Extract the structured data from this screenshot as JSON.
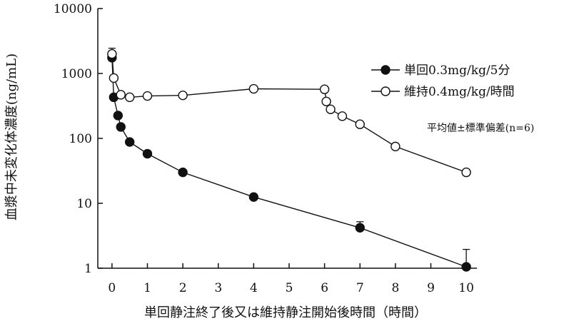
{
  "chart_data": {
    "type": "line",
    "xlabel": "単回静注終了後又は維持静注開始後時間（時間）",
    "ylabel": "血漿中未変化体濃度(ng/mL)",
    "y_scale": "log",
    "ylim": [
      1,
      10000
    ],
    "xlim": [
      -0.4,
      10.3
    ],
    "x_ticks": [
      0,
      1,
      2,
      3,
      4,
      5,
      6,
      7,
      8,
      9,
      10
    ],
    "x_tick_labels": [
      "0",
      "1",
      "2",
      "3",
      "4",
      "5",
      "6",
      "7",
      "8",
      "9",
      "10"
    ],
    "y_ticks": [
      1,
      10,
      100,
      1000,
      10000
    ],
    "y_tick_labels": [
      "1",
      "10",
      "100",
      "1000",
      "10000"
    ],
    "legend_position": "right",
    "annotation": "平均値±標準偏差(n=6)",
    "colors": {
      "axis": "#111111",
      "filled_marker": "#111111",
      "open_marker_fill": "#ffffff"
    },
    "series": [
      {
        "name": "単回0.3mg/kg/5分",
        "marker": "filled-circle",
        "x": [
          0,
          0.05,
          0.17,
          0.25,
          0.5,
          1,
          2,
          4,
          7,
          10
        ],
        "y": [
          1750,
          430,
          225,
          150,
          88,
          58,
          30,
          12.5,
          4.2,
          1.05
        ],
        "y_err": [
          350,
          0,
          0,
          0,
          0,
          0,
          0,
          0,
          1.0,
          0.9
        ]
      },
      {
        "name": "維持0.4mg/kg/時間",
        "marker": "open-circle",
        "x": [
          0,
          0.05,
          0.25,
          0.5,
          1,
          2,
          4,
          6,
          6.05,
          6.17,
          6.5,
          7,
          8,
          10
        ],
        "y": [
          2000,
          850,
          470,
          430,
          450,
          460,
          580,
          570,
          370,
          280,
          220,
          165,
          75,
          30
        ],
        "y_err": [
          450,
          0,
          0,
          0,
          0,
          0,
          0,
          0,
          0,
          0,
          0,
          0,
          0,
          0
        ]
      }
    ]
  }
}
